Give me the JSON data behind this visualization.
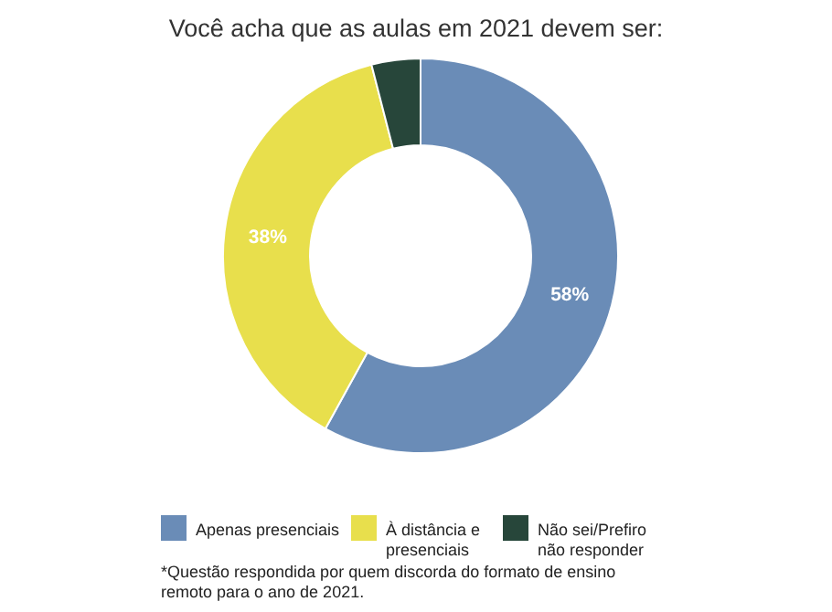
{
  "chart_data": {
    "type": "donut",
    "title": "Você acha que as aulas em 2021 devem ser:",
    "categories": [
      "Apenas presenciais",
      "À distância e presenciais",
      "Não sei/Prefiro não responder"
    ],
    "values": [
      58,
      38,
      4
    ],
    "colors": [
      "#6a8cb7",
      "#e8df4c",
      "#27463a"
    ],
    "value_labels": [
      "58%",
      "38%",
      null
    ],
    "legend": "bottom",
    "annotations": [
      "*Questão respondida por quem discorda do formato de ensino remoto para o ano de 2021."
    ]
  }
}
